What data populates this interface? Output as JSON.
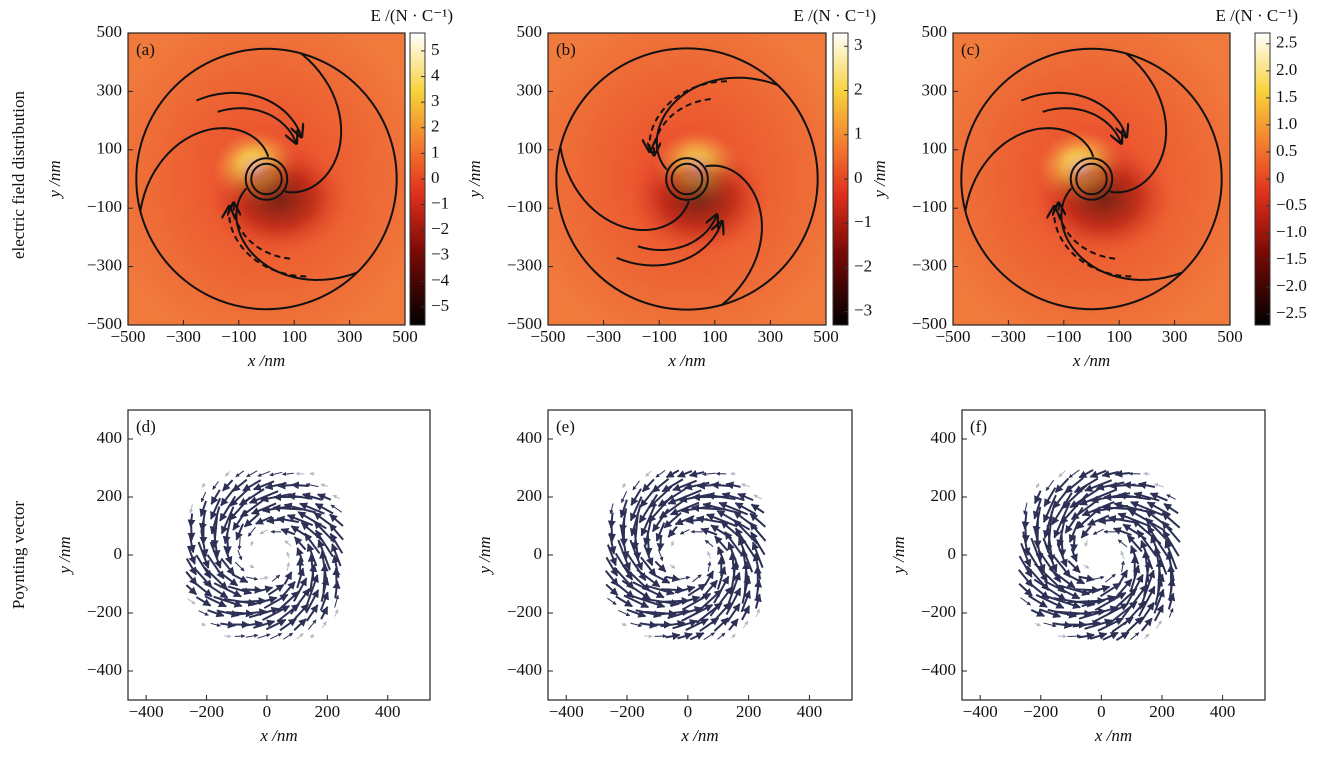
{
  "row_labels": [
    "electric field distribution",
    "Poynting vector"
  ],
  "chart_data": [
    {
      "type": "heatmap",
      "label": "(a)",
      "xlabel": "x /nm",
      "ylabel": "y /nm",
      "xlim": [
        -500,
        500
      ],
      "ylim": [
        -500,
        500
      ],
      "xticks": [
        {
          "value": -500,
          "label": "−500"
        },
        {
          "value": -300,
          "label": "−300"
        },
        {
          "value": -100,
          "label": "−100"
        },
        100,
        300,
        500
      ],
      "yticks": [
        {
          "value": -500,
          "label": "−500"
        },
        {
          "value": -300,
          "label": "−300"
        },
        {
          "value": -100,
          "label": "−100"
        },
        100,
        300,
        500
      ],
      "colorbar": {
        "title": "E /(N · C⁻¹)",
        "lim": [
          -5.7,
          5.7
        ],
        "ticks": [
          5,
          4,
          3,
          2,
          1,
          0,
          {
            "value": -1,
            "label": "−1"
          },
          {
            "value": -2,
            "label": "−2"
          },
          {
            "value": -3,
            "label": "−3"
          },
          {
            "value": -4,
            "label": "−4"
          },
          {
            "value": -5,
            "label": "−5"
          }
        ]
      }
    },
    {
      "type": "heatmap",
      "label": "(b)",
      "xlabel": "x /nm",
      "ylabel": "y /nm",
      "xlim": [
        -500,
        500
      ],
      "ylim": [
        -500,
        500
      ],
      "xticks": [
        {
          "value": -500,
          "label": "−500"
        },
        {
          "value": -300,
          "label": "−300"
        },
        {
          "value": -100,
          "label": "−100"
        },
        100,
        300,
        500
      ],
      "yticks": [
        {
          "value": -500,
          "label": "−500"
        },
        {
          "value": -300,
          "label": "−300"
        },
        {
          "value": -100,
          "label": "−100"
        },
        100,
        300,
        500
      ],
      "colorbar": {
        "title": "E /(N · C⁻¹)",
        "lim": [
          -3.3,
          3.3
        ],
        "ticks": [
          3,
          2,
          1,
          0,
          {
            "value": -1,
            "label": "−1"
          },
          {
            "value": -2,
            "label": "−2"
          },
          {
            "value": -3,
            "label": "−3"
          }
        ]
      }
    },
    {
      "type": "heatmap",
      "label": "(c)",
      "xlabel": "x /nm",
      "ylabel": "y /nm",
      "xlim": [
        -500,
        500
      ],
      "ylim": [
        -500,
        500
      ],
      "xticks": [
        {
          "value": -500,
          "label": "−500"
        },
        {
          "value": -300,
          "label": "−300"
        },
        {
          "value": -100,
          "label": "−100"
        },
        100,
        300,
        500
      ],
      "yticks": [
        {
          "value": -500,
          "label": "−500"
        },
        {
          "value": -300,
          "label": "−300"
        },
        {
          "value": -100,
          "label": "−100"
        },
        100,
        300,
        500
      ],
      "colorbar": {
        "title": "E /(N · C⁻¹)",
        "lim": [
          -2.7,
          2.7
        ],
        "ticks": [
          2.5,
          {
            "value": 2,
            "label": "2.0"
          },
          1.5,
          {
            "value": 1,
            "label": "1.0"
          },
          0.5,
          0,
          {
            "value": -0.5,
            "label": "−0.5"
          },
          {
            "value": -1,
            "label": "−1.0"
          },
          {
            "value": -1.5,
            "label": "−1.5"
          },
          {
            "value": -2,
            "label": "−2.0"
          },
          {
            "value": -2.5,
            "label": "−2.5"
          }
        ]
      }
    },
    {
      "type": "quiver",
      "label": "(d)",
      "xlabel": "x /nm",
      "ylabel": "y /nm",
      "xlim": [
        -460,
        540
      ],
      "ylim": [
        -500,
        500
      ],
      "xticks": [
        {
          "value": -400,
          "label": "−400"
        },
        {
          "value": -200,
          "label": "−200"
        },
        0,
        200,
        400
      ],
      "yticks": [
        {
          "value": -400,
          "label": "−400"
        },
        {
          "value": -200,
          "label": "−200"
        },
        0,
        200,
        400
      ]
    },
    {
      "type": "quiver",
      "label": "(e)",
      "xlabel": "x /nm",
      "ylabel": "y /nm",
      "xlim": [
        -460,
        540
      ],
      "ylim": [
        -500,
        500
      ],
      "xticks": [
        {
          "value": -400,
          "label": "−400"
        },
        {
          "value": -200,
          "label": "−200"
        },
        0,
        200,
        400
      ],
      "yticks": [
        {
          "value": -400,
          "label": "−400"
        },
        {
          "value": -200,
          "label": "−200"
        },
        0,
        200,
        400
      ]
    },
    {
      "type": "quiver",
      "label": "(f)",
      "xlabel": "x /nm",
      "ylabel": "y /nm",
      "xlim": [
        -460,
        540
      ],
      "ylim": [
        -500,
        500
      ],
      "xticks": [
        {
          "value": -400,
          "label": "−400"
        },
        {
          "value": -200,
          "label": "−200"
        },
        0,
        200,
        400
      ],
      "yticks": [
        {
          "value": -400,
          "label": "−400"
        },
        {
          "value": -200,
          "label": "−200"
        },
        0,
        200,
        400
      ]
    }
  ]
}
